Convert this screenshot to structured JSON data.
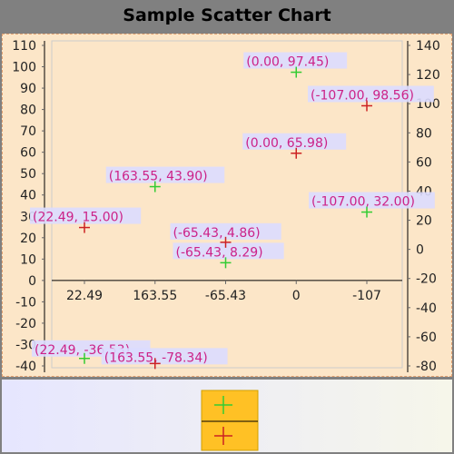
{
  "chart_data": {
    "type": "scatter",
    "title": "Sample Scatter Chart",
    "xlabel": "",
    "ylabel": "",
    "grid": false,
    "legend_position": "bottom",
    "categories": [
      "22.49",
      "163.55",
      "-65.43",
      "0",
      "-107"
    ],
    "left_axis": {
      "range": [
        -40,
        110
      ],
      "ticks": [
        -40,
        -30,
        -20,
        -10,
        0,
        10,
        20,
        30,
        40,
        50,
        60,
        70,
        80,
        90,
        100,
        110
      ]
    },
    "right_axis": {
      "range": [
        -80,
        140
      ],
      "ticks": [
        -80,
        -60,
        -40,
        -20,
        0,
        20,
        40,
        60,
        80,
        100,
        120,
        140
      ]
    },
    "series": [
      {
        "marker": "+",
        "color": "#33cc33",
        "axis": "left",
        "points": [
          {
            "category": "22.49",
            "y": -36.5,
            "label": "(22.49, -36.53)"
          },
          {
            "category": "163.55",
            "y": 43.9,
            "label": "(163.55, 43.90)"
          },
          {
            "category": "-65.43",
            "y": 8.29,
            "label": "(-65.43, 8.29)"
          },
          {
            "category": "0",
            "y": 97.45,
            "label": "(0.00, 97.45)"
          },
          {
            "category": "-107",
            "y": 32.0,
            "label": "(-107.00, 32.00)"
          }
        ]
      },
      {
        "marker": "+",
        "color": "#cc2222",
        "axis": "right",
        "points": [
          {
            "category": "22.49",
            "y": 15.0,
            "label": "(22.49, 15.00)"
          },
          {
            "category": "163.55",
            "y": -78.34,
            "label": "(163.55, -78.34)"
          },
          {
            "category": "-65.43",
            "y": 4.86,
            "label": "(-65.43, 4.86)"
          },
          {
            "category": "0",
            "y": 65.98,
            "label": "(0.00, 65.98)"
          },
          {
            "category": "-107",
            "y": 98.56,
            "label": "(-107.00, 98.56)"
          }
        ]
      }
    ]
  }
}
